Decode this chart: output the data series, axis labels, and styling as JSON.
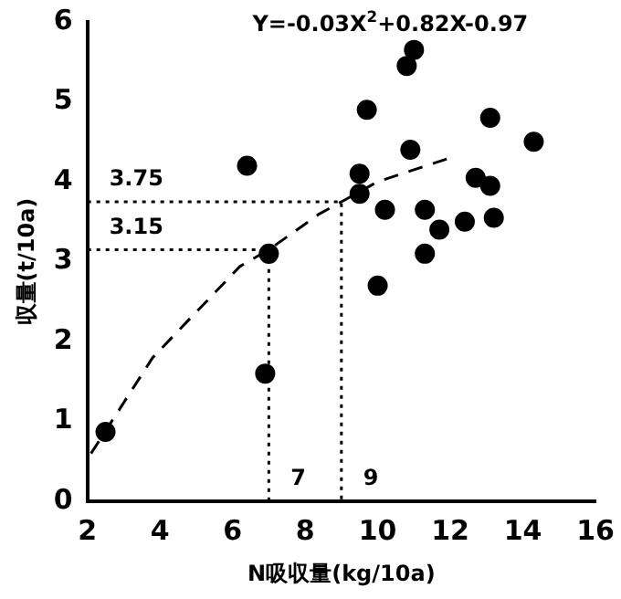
{
  "chart_data": {
    "type": "scatter",
    "xlabel": "N吸収量(kg/10a)",
    "ylabel": "収量(t/10a)",
    "xlim": [
      2,
      16
    ],
    "xticks": [
      2,
      4,
      6,
      8,
      10,
      12,
      14,
      16
    ],
    "ylim": [
      0,
      6
    ],
    "yticks": [
      0,
      1,
      2,
      3,
      4,
      5,
      6
    ],
    "grid": false,
    "legend": false,
    "marker": "circle",
    "series": [
      {
        "color": "#000000",
        "x": [
          2.5,
          6.4,
          7.0,
          6.9,
          9.5,
          9.5,
          9.7,
          10.0,
          10.2,
          10.8,
          11.0,
          10.9,
          11.3,
          11.3,
          11.7,
          12.4,
          12.7,
          13.1,
          13.2,
          13.1,
          14.3
        ],
        "values": [
          0.87,
          4.2,
          3.1,
          1.6,
          3.85,
          4.1,
          4.9,
          2.7,
          3.65,
          5.45,
          5.65,
          4.4,
          3.65,
          3.1,
          3.4,
          3.5,
          4.05,
          3.95,
          3.55,
          4.8,
          4.5
        ]
      },
      {
        "type": "line",
        "color": "#000000",
        "line_style": "dashed",
        "marker": "none",
        "x": [
          2.1,
          3.8,
          5.0,
          6.2,
          7.0,
          8.4,
          9.0,
          10.0,
          12.0
        ],
        "values": [
          0.6,
          1.8,
          2.37,
          2.94,
          3.15,
          3.6,
          3.75,
          4.0,
          4.3
        ]
      },
      {
        "type": "line",
        "color": "#000000",
        "line_style": "dotted",
        "marker": "none",
        "x": [
          2,
          7,
          7
        ],
        "values": [
          3.15,
          3.15,
          0
        ]
      },
      {
        "type": "line",
        "color": "#000000",
        "line_style": "dotted",
        "marker": "none",
        "x": [
          2,
          9,
          9
        ],
        "values": [
          3.75,
          3.75,
          0
        ]
      }
    ],
    "annotations": [
      "Y=-0.03X$^{2}$+0.82X-0.97",
      {
        "text": "3.75",
        "x": 2,
        "y": 3.75
      },
      {
        "text": "3.15",
        "x": 2,
        "y": 3.15
      },
      {
        "text": "7",
        "x": 7,
        "y": 0
      },
      {
        "text": "9",
        "x": 9,
        "y": 0
      }
    ]
  }
}
